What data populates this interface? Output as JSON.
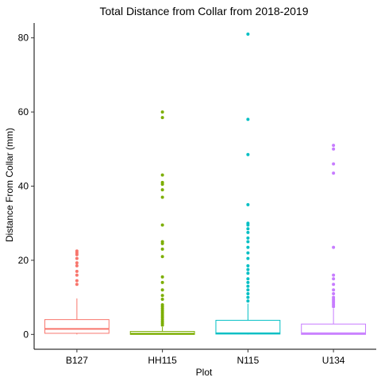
{
  "chart_data": {
    "type": "box",
    "title": "Total Distance from Collar from 2018-2019",
    "xlabel": "Plot",
    "ylabel": "Distance From Collar (mm)",
    "ylim": [
      -4,
      84
    ],
    "yticks": [
      0,
      20,
      40,
      60,
      80
    ],
    "grid": false,
    "legend": "none",
    "categories": [
      "B127",
      "HH115",
      "N115",
      "U134"
    ],
    "colors": [
      "#F8766D",
      "#7CAE00",
      "#00BFC4",
      "#C77CFF"
    ],
    "boxes": [
      {
        "category": "B127",
        "min": 0,
        "q1": 0.3,
        "median": 1.5,
        "q3": 4.0,
        "whisker_high": 9.7,
        "outliers": [
          13.5,
          14.5,
          16,
          17,
          18.5,
          19.3,
          20.5,
          21.5,
          22,
          22.5
        ]
      },
      {
        "category": "HH115",
        "min": 0,
        "q1": 0.0,
        "median": 0.2,
        "q3": 0.8,
        "whisker_high": 2.0,
        "outliers": [
          2.5,
          3,
          3.5,
          4,
          4.5,
          5,
          5.5,
          6,
          6.5,
          7,
          7.5,
          8,
          9.5,
          10.5,
          12,
          14,
          15.5,
          21,
          23,
          24.5,
          25,
          29.5,
          37,
          39,
          40.5,
          41,
          43,
          58.5,
          60
        ]
      },
      {
        "category": "N115",
        "min": 0,
        "q1": 0.1,
        "median": 0.3,
        "q3": 3.8,
        "whisker_high": 8.3,
        "outliers": [
          9,
          10,
          11,
          12,
          13,
          14,
          15,
          16.5,
          17.5,
          18.5,
          20.5,
          22,
          23.5,
          25,
          26,
          27.5,
          28.5,
          29.5,
          30,
          35,
          48.5,
          58,
          81
        ]
      },
      {
        "category": "U134",
        "min": 0,
        "q1": 0.0,
        "median": 0.3,
        "q3": 2.8,
        "whisker_high": 7.0,
        "outliers": [
          7.5,
          8,
          8.5,
          9,
          9.5,
          10,
          11,
          12,
          13.5,
          15,
          16,
          23.5,
          43.5,
          46,
          50,
          51
        ]
      }
    ]
  }
}
